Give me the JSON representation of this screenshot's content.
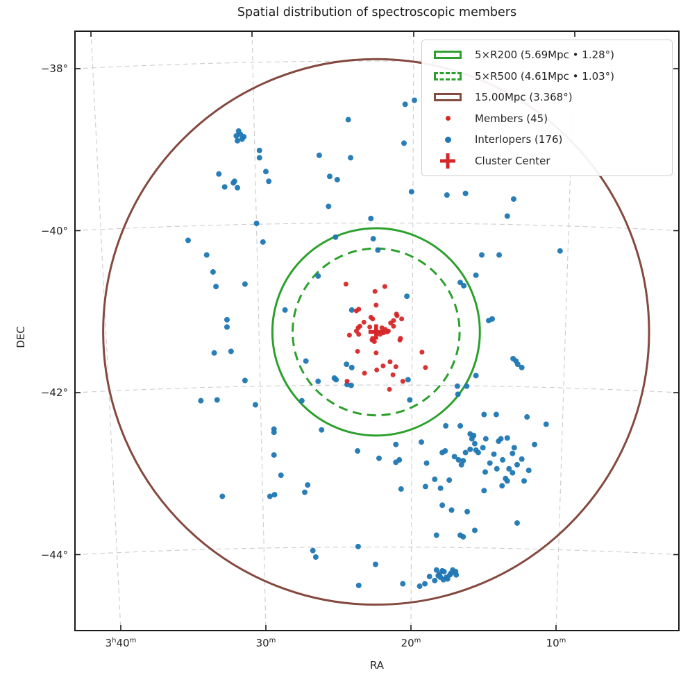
{
  "title": "Spatial distribution of spectroscopic members",
  "axes": {
    "x_label": "RA",
    "y_label": "DEC",
    "x_ticks": [
      {
        "value": 55.0,
        "label": "3h40m"
      },
      {
        "value": 52.5,
        "label": "30m"
      },
      {
        "value": 50.0,
        "label": "20m"
      },
      {
        "value": 47.5,
        "label": "10m"
      }
    ],
    "y_ticks": [
      {
        "value": -38,
        "label": "−38°"
      },
      {
        "value": -40,
        "label": "−40°"
      },
      {
        "value": -42,
        "label": "−42°"
      },
      {
        "value": -44,
        "label": "−44°"
      }
    ]
  },
  "colors": {
    "members": "#d62728",
    "interlopers": "#1f77b4",
    "green_circle": "#2ca02c",
    "brown_circle": "#84493f",
    "grid": "#cccccc",
    "spine": "#1a1a1a",
    "text": "#262626"
  },
  "legend": {
    "items": [
      {
        "type": "rect-solid",
        "color": "#2ca02c",
        "label": "5×R200 (5.69Mpc • 1.28°)"
      },
      {
        "type": "rect-dashed",
        "color": "#2ca02c",
        "label": "5×R500 (4.61Mpc • 1.03°)"
      },
      {
        "type": "rect-solid",
        "color": "#84493f",
        "label": "15.00Mpc (3.368°)"
      },
      {
        "type": "dot",
        "color": "#d62728",
        "label": "Members (45)"
      },
      {
        "type": "dot",
        "color": "#1f77b4",
        "label": "Interlopers (176)"
      },
      {
        "type": "plus",
        "color": "#d62728",
        "label": "Cluster Center"
      }
    ]
  },
  "chart_data": {
    "type": "scatter",
    "title": "Spatial distribution of spectroscopic members",
    "xlabel": "RA",
    "ylabel": "DEC",
    "x_range_deg": [
      55.79,
      45.38
    ],
    "y_range_deg": [
      -44.94,
      -37.54
    ],
    "grid": true,
    "legend_position": "upper right",
    "cluster_center": {
      "ra": 50.6,
      "dec": -41.25
    },
    "circles": [
      {
        "name": "5xR200",
        "radius_deg": 1.28,
        "style": "solid",
        "color": "#2ca02c",
        "label": "5×R200 (5.69Mpc • 1.28°)"
      },
      {
        "name": "5xR500",
        "radius_deg": 1.03,
        "style": "dashed",
        "color": "#2ca02c",
        "label": "5×R500 (4.61Mpc • 1.03°)"
      },
      {
        "name": "15Mpc",
        "radius_deg": 3.368,
        "style": "solid",
        "color": "#84493f",
        "label": "15.00Mpc (3.368°)"
      }
    ],
    "members": [
      [
        51.12,
        -40.66
      ],
      [
        50.45,
        -40.69
      ],
      [
        50.62,
        -40.75
      ],
      [
        50.6,
        -40.92
      ],
      [
        50.9,
        -40.97
      ],
      [
        50.94,
        -40.99
      ],
      [
        50.69,
        -41.07
      ],
      [
        50.66,
        -41.09
      ],
      [
        50.81,
        -41.13
      ],
      [
        50.25,
        -41.03
      ],
      [
        50.3,
        -41.11
      ],
      [
        50.35,
        -41.14
      ],
      [
        50.31,
        -41.78
      ],
      [
        50.88,
        -41.18
      ],
      [
        50.14,
        -41.86
      ],
      [
        50.91,
        -41.2
      ],
      [
        50.94,
        -41.24
      ],
      [
        50.8,
        -41.76
      ],
      [
        50.71,
        -41.19
      ],
      [
        51.1,
        -41.86
      ],
      [
        50.5,
        -41.2
      ],
      [
        50.44,
        -41.22
      ],
      [
        50.41,
        -41.25
      ],
      [
        50.47,
        -41.26
      ],
      [
        50.53,
        -41.28
      ],
      [
        51.06,
        -41.29
      ],
      [
        50.9,
        -41.28
      ],
      [
        50.24,
        -41.05
      ],
      [
        50.16,
        -41.09
      ],
      [
        50.3,
        -41.18
      ],
      [
        50.39,
        -41.24
      ],
      [
        50.18,
        -41.33
      ],
      [
        50.66,
        -41.33
      ],
      [
        50.67,
        -41.35
      ],
      [
        50.63,
        -41.37
      ],
      [
        50.19,
        -41.35
      ],
      [
        50.92,
        -41.49
      ],
      [
        50.6,
        -41.51
      ],
      [
        49.81,
        -41.5
      ],
      [
        49.75,
        -41.69
      ],
      [
        50.36,
        -41.62
      ],
      [
        50.37,
        -41.96
      ],
      [
        50.26,
        -41.68
      ],
      [
        50.59,
        -41.72
      ],
      [
        50.48,
        -41.67
      ]
    ],
    "interlopers": [
      [
        52.97,
        -38.77
      ],
      [
        52.99,
        -38.89
      ],
      [
        52.88,
        -38.84
      ],
      [
        52.94,
        -38.81
      ],
      [
        52.91,
        -38.87
      ],
      [
        53.01,
        -38.83
      ],
      [
        52.61,
        -39.01
      ],
      [
        52.61,
        -39.1
      ],
      [
        53.31,
        -39.3
      ],
      [
        53.21,
        -39.46
      ],
      [
        53.06,
        -39.41
      ],
      [
        53.04,
        -39.39
      ],
      [
        52.99,
        -39.47
      ],
      [
        52.5,
        -39.27
      ],
      [
        52.45,
        -39.39
      ],
      [
        52.66,
        -39.91
      ],
      [
        49.94,
        -38.39
      ],
      [
        50.1,
        -38.44
      ],
      [
        51.08,
        -38.63
      ],
      [
        50.12,
        -38.92
      ],
      [
        51.58,
        -39.07
      ],
      [
        51.04,
        -39.1
      ],
      [
        51.4,
        -39.33
      ],
      [
        51.27,
        -39.37
      ],
      [
        49.99,
        -39.52
      ],
      [
        49.38,
        -39.56
      ],
      [
        49.06,
        -39.54
      ],
      [
        51.42,
        -39.7
      ],
      [
        50.69,
        -39.85
      ],
      [
        48.23,
        -39.61
      ],
      [
        48.34,
        -39.82
      ],
      [
        53.84,
        -40.12
      ],
      [
        52.55,
        -40.14
      ],
      [
        53.52,
        -40.3
      ],
      [
        53.41,
        -40.51
      ],
      [
        53.36,
        -40.69
      ],
      [
        52.86,
        -40.66
      ],
      [
        53.17,
        -41.1
      ],
      [
        53.17,
        -41.19
      ],
      [
        53.39,
        -41.51
      ],
      [
        53.1,
        -41.49
      ],
      [
        52.86,
        -41.85
      ],
      [
        53.62,
        -42.1
      ],
      [
        53.34,
        -42.09
      ],
      [
        52.68,
        -42.15
      ],
      [
        52.36,
        -42.45
      ],
      [
        48.78,
        -40.3
      ],
      [
        48.48,
        -40.3
      ],
      [
        47.43,
        -40.25
      ],
      [
        48.88,
        -40.55
      ],
      [
        48.66,
        -41.11
      ],
      [
        48.6,
        -41.09
      ],
      [
        48.24,
        -41.58
      ],
      [
        48.16,
        -41.65
      ],
      [
        48.19,
        -41.61
      ],
      [
        48.09,
        -41.69
      ],
      [
        48.88,
        -41.79
      ],
      [
        48.74,
        -42.27
      ],
      [
        48.53,
        -42.27
      ],
      [
        48.0,
        -42.3
      ],
      [
        47.67,
        -42.39
      ],
      [
        51.3,
        -40.08
      ],
      [
        50.65,
        -40.1
      ],
      [
        50.57,
        -40.24
      ],
      [
        51.6,
        -40.56
      ],
      [
        52.17,
        -40.98
      ],
      [
        51.02,
        -40.98
      ],
      [
        50.07,
        -40.81
      ],
      [
        49.15,
        -40.64
      ],
      [
        49.09,
        -40.68
      ],
      [
        51.81,
        -41.61
      ],
      [
        51.11,
        -41.65
      ],
      [
        51.02,
        -41.69
      ],
      [
        51.32,
        -41.82
      ],
      [
        51.29,
        -41.84
      ],
      [
        51.6,
        -41.86
      ],
      [
        51.1,
        -41.9
      ],
      [
        51.03,
        -41.91
      ],
      [
        50.05,
        -41.84
      ],
      [
        50.02,
        -42.09
      ],
      [
        51.88,
        -42.1
      ],
      [
        49.2,
        -41.92
      ],
      [
        49.04,
        -41.92
      ],
      [
        49.19,
        -42.02
      ],
      [
        51.54,
        -42.46
      ],
      [
        49.4,
        -42.41
      ],
      [
        49.15,
        -42.41
      ],
      [
        53.25,
        -43.28
      ],
      [
        52.36,
        -42.49
      ],
      [
        52.36,
        -42.77
      ],
      [
        52.43,
        -43.28
      ],
      [
        52.35,
        -43.26
      ],
      [
        50.26,
        -42.64
      ],
      [
        49.82,
        -42.61
      ],
      [
        50.92,
        -42.72
      ],
      [
        50.55,
        -42.81
      ],
      [
        50.26,
        -42.86
      ],
      [
        50.2,
        -42.83
      ],
      [
        49.73,
        -42.87
      ],
      [
        52.24,
        -43.02
      ],
      [
        51.78,
        -43.14
      ],
      [
        51.83,
        -43.23
      ],
      [
        50.17,
        -43.19
      ],
      [
        49.75,
        -43.16
      ],
      [
        49.59,
        -43.07
      ],
      [
        49.34,
        -43.08
      ],
      [
        49.49,
        -43.18
      ],
      [
        49.46,
        -42.74
      ],
      [
        49.41,
        -42.72
      ],
      [
        49.25,
        -42.79
      ],
      [
        49.13,
        -42.89
      ],
      [
        49.18,
        -42.83
      ],
      [
        49.1,
        -42.84
      ],
      [
        49.06,
        -42.74
      ],
      [
        48.98,
        -42.7
      ],
      [
        48.95,
        -42.57
      ],
      [
        48.92,
        -42.53
      ],
      [
        48.98,
        -42.51
      ],
      [
        48.9,
        -42.63
      ],
      [
        49.15,
        -43.76
      ],
      [
        49.1,
        -43.78
      ],
      [
        49.56,
        -43.76
      ],
      [
        49.46,
        -43.39
      ],
      [
        49.3,
        -43.45
      ],
      [
        49.03,
        -43.47
      ],
      [
        50.91,
        -43.9
      ],
      [
        51.69,
        -43.95
      ],
      [
        51.64,
        -44.03
      ],
      [
        50.61,
        -44.12
      ],
      [
        50.9,
        -44.38
      ],
      [
        49.85,
        -44.39
      ],
      [
        49.76,
        -44.36
      ],
      [
        49.68,
        -44.27
      ],
      [
        49.59,
        -44.32
      ],
      [
        49.56,
        -44.19
      ],
      [
        49.51,
        -44.24
      ],
      [
        49.46,
        -44.2
      ],
      [
        49.49,
        -44.28
      ],
      [
        49.44,
        -44.31
      ],
      [
        49.39,
        -44.28
      ],
      [
        49.33,
        -44.25
      ],
      [
        49.28,
        -44.19
      ],
      [
        49.23,
        -44.21
      ],
      [
        49.22,
        -44.25
      ],
      [
        50.14,
        -44.36
      ],
      [
        49.43,
        -44.21
      ],
      [
        49.53,
        -44.26
      ],
      [
        49.37,
        -44.3
      ],
      [
        49.31,
        -44.23
      ],
      [
        48.76,
        -42.68
      ],
      [
        48.84,
        -42.74
      ],
      [
        48.88,
        -42.71
      ],
      [
        48.49,
        -42.6
      ],
      [
        48.45,
        -42.57
      ],
      [
        48.34,
        -42.56
      ],
      [
        48.25,
        -42.75
      ],
      [
        48.42,
        -42.83
      ],
      [
        48.31,
        -42.94
      ],
      [
        48.25,
        -42.99
      ],
      [
        48.37,
        -43.06
      ],
      [
        48.34,
        -43.09
      ],
      [
        48.43,
        -43.15
      ],
      [
        48.05,
        -43.09
      ],
      [
        48.74,
        -43.21
      ],
      [
        48.17,
        -43.61
      ],
      [
        48.9,
        -43.7
      ],
      [
        48.64,
        -42.87
      ],
      [
        48.57,
        -42.76
      ],
      [
        48.72,
        -42.98
      ],
      [
        48.17,
        -42.89
      ],
      [
        48.09,
        -42.82
      ],
      [
        47.97,
        -42.96
      ],
      [
        47.87,
        -42.64
      ],
      [
        48.71,
        -42.57
      ],
      [
        48.22,
        -42.68
      ],
      [
        48.52,
        -42.94
      ]
    ]
  }
}
